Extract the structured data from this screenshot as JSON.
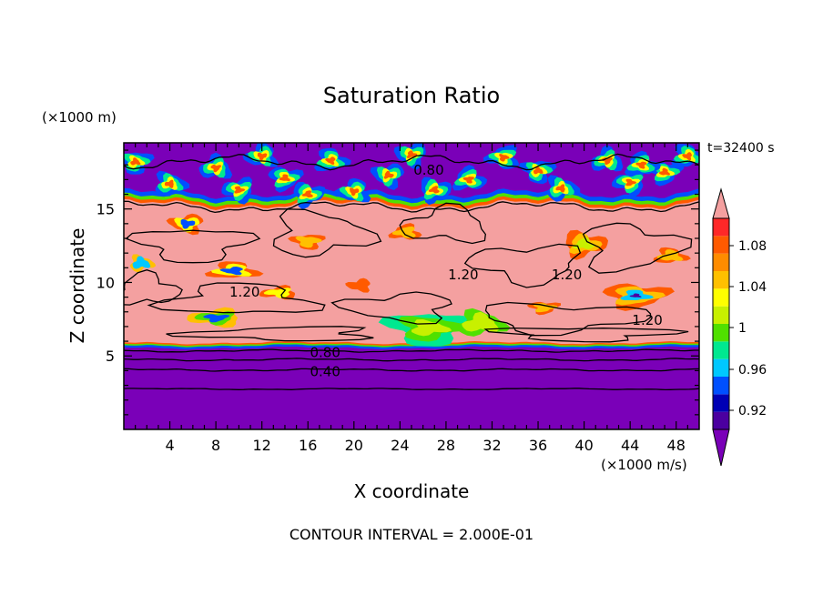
{
  "chart_data": {
    "type": "heatmap",
    "title": "Saturation Ratio",
    "y_unit_label": "(×1000 m)",
    "x_unit_label": "(×1000 m/s)",
    "time_label": "t=32400 s",
    "xlabel": "X coordinate",
    "ylabel": "Z coordinate",
    "footer": "CONTOUR INTERVAL = 2.000E-01",
    "xlim": [
      0,
      50
    ],
    "ylim": [
      0,
      19.5
    ],
    "x_ticks": [
      "4",
      "8",
      "12",
      "16",
      "20",
      "24",
      "28",
      "32",
      "36",
      "40",
      "44",
      "48"
    ],
    "y_ticks": [
      "5",
      "10",
      "15"
    ],
    "colorbar": {
      "labels": [
        "1.08",
        "1.04",
        "1",
        "0.96",
        "0.92"
      ],
      "colors": [
        "#7a00b8",
        "#4b00a0",
        "#0000b4",
        "#0050ff",
        "#00c8ff",
        "#00e890",
        "#50e000",
        "#c8f000",
        "#ffff00",
        "#ffc000",
        "#ff8c00",
        "#ff5a00",
        "#ff2828",
        "#f4a0a0"
      ]
    },
    "contour_labels": [
      {
        "text": "0.80",
        "x": 26.5,
        "y": 17.7
      },
      {
        "text": "1.20",
        "x": 29.5,
        "y": 10.6
      },
      {
        "text": "1.20",
        "x": 38.5,
        "y": 10.6
      },
      {
        "text": "1.20",
        "x": 10.5,
        "y": 9.4
      },
      {
        "text": "1.20",
        "x": 45.5,
        "y": 7.5
      },
      {
        "text": "0.80",
        "x": 17.5,
        "y": 5.3
      },
      {
        "text": "0.40",
        "x": 17.5,
        "y": 4.0
      }
    ]
  }
}
